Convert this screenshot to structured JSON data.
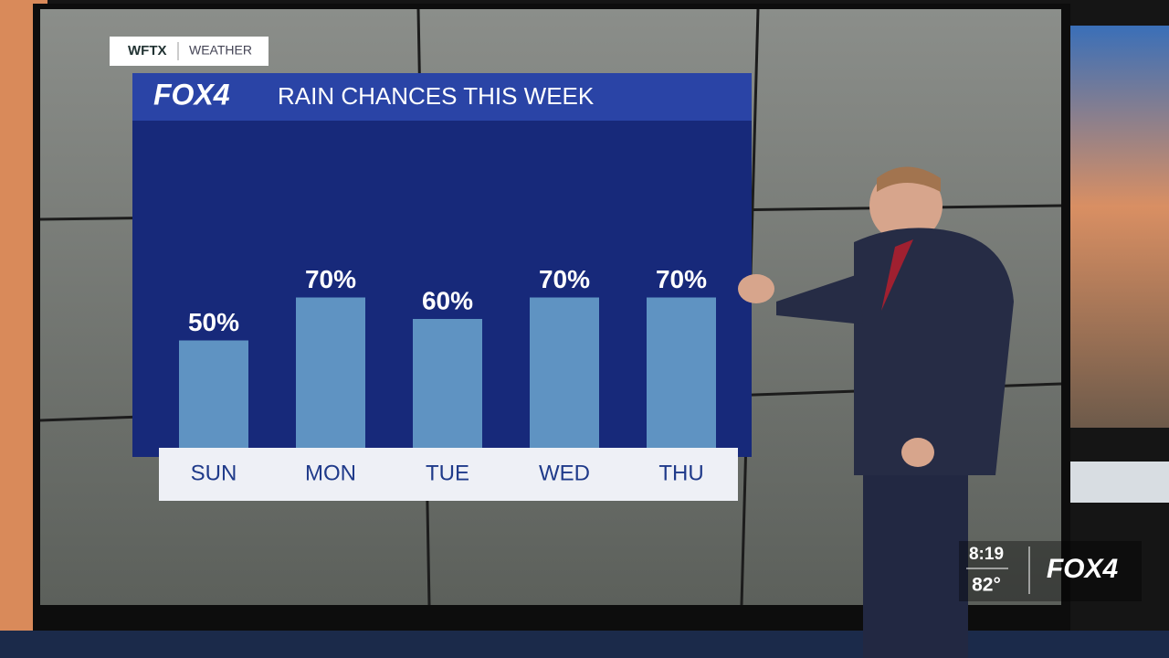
{
  "branding": {
    "station": "WFTX",
    "section": "WEATHER",
    "logo": "FOX4"
  },
  "chart_data": {
    "type": "bar",
    "title": "RAIN CHANCES THIS WEEK",
    "categories": [
      "SUN",
      "MON",
      "TUE",
      "WED",
      "THU"
    ],
    "values": [
      50,
      70,
      60,
      70,
      70
    ],
    "value_labels": [
      "50%",
      "70%",
      "60%",
      "70%",
      "70%"
    ],
    "color": "#5f93c2"
  },
  "bug": {
    "time": "8:19",
    "temperature": "82°",
    "logo": "FOX4"
  }
}
